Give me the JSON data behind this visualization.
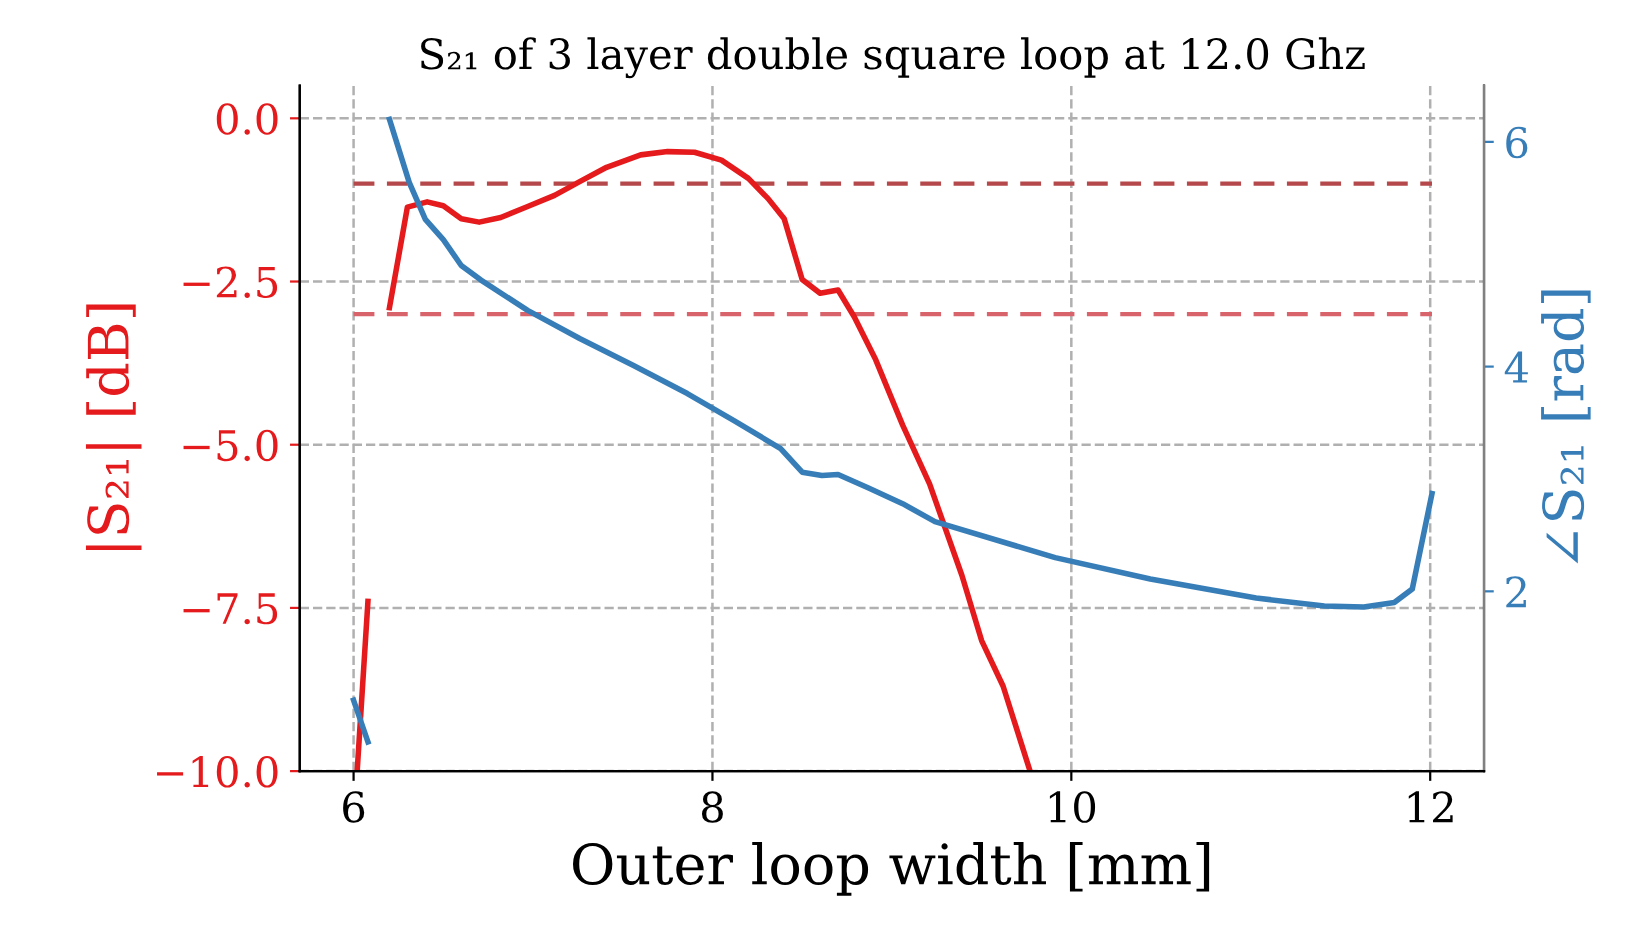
{
  "chart_data": {
    "type": "line",
    "title": "S₂₁ of 3 layer double square loop at 12.0 Ghz",
    "xlabel": "Outer loop width [mm]",
    "ylabel": "|S₂₁| [dB]",
    "y2label": "∠S₂₁ [rad]",
    "xlim": [
      5.7,
      12.3
    ],
    "xticks": [
      6,
      8,
      10,
      12
    ],
    "ylim": [
      -10,
      0.5
    ],
    "yticks": [
      {
        "value": 0,
        "label": "0.0"
      },
      {
        "value": -2.5,
        "label": "−2.5"
      },
      {
        "value": -5,
        "label": "−5.0"
      },
      {
        "value": -7.5,
        "label": "−7.5"
      },
      {
        "value": -10,
        "label": "−10.0"
      }
    ],
    "y2lim": [
      0.4,
      6.5
    ],
    "y2ticks": [
      2,
      4,
      6
    ],
    "grid": true,
    "line_style": "solid",
    "marker": "none",
    "series": [
      {
        "color": "#e41a1c",
        "x": [
          6.02,
          6.08,
          6.14,
          6.2,
          6.3,
          6.41,
          6.5,
          6.6,
          6.7,
          6.82,
          6.97,
          7.12,
          7.26,
          7.41,
          7.6,
          7.75,
          7.9,
          8.05,
          8.2,
          8.31,
          8.4,
          8.5,
          8.6,
          8.7,
          8.79,
          8.91,
          9.06,
          9.21,
          9.39,
          9.5,
          9.62,
          9.77
        ],
        "values": [
          -10.0,
          -7.4,
          null,
          -2.9,
          -1.36,
          -1.28,
          -1.34,
          -1.54,
          -1.59,
          -1.52,
          -1.35,
          -1.18,
          -0.97,
          -0.75,
          -0.56,
          -0.51,
          -0.52,
          -0.64,
          -0.92,
          -1.23,
          -1.54,
          -2.47,
          -2.68,
          -2.63,
          -3.04,
          -3.7,
          -4.7,
          -5.6,
          -7.0,
          -8.0,
          -8.7,
          -10.0
        ]
      },
      {
        "color": "#377eb8",
        "axis": "y2",
        "x": [
          6.0,
          6.08,
          6.14,
          6.2,
          6.31,
          6.4,
          6.5,
          6.6,
          6.71,
          6.97,
          7.26,
          7.56,
          7.86,
          8.12,
          8.38,
          8.5,
          8.61,
          8.7,
          8.87,
          9.06,
          9.24,
          9.91,
          10.44,
          11.03,
          11.41,
          11.63,
          11.8,
          11.9,
          12.01
        ],
        "values": [
          1.03,
          0.66,
          null,
          6.2,
          5.64,
          5.31,
          5.13,
          4.9,
          4.77,
          4.5,
          4.25,
          4.01,
          3.76,
          3.52,
          3.27,
          3.06,
          3.03,
          3.04,
          2.92,
          2.78,
          2.62,
          2.3,
          2.11,
          1.94,
          1.87,
          1.86,
          1.9,
          2.02,
          2.87
        ]
      }
    ],
    "ref_lines": [
      {
        "axis": "y",
        "value": -1,
        "color": "#b5484a",
        "line_style": "dashed"
      },
      {
        "axis": "y",
        "value": -3,
        "color": "#d9636b",
        "line_style": "dashed"
      }
    ]
  }
}
